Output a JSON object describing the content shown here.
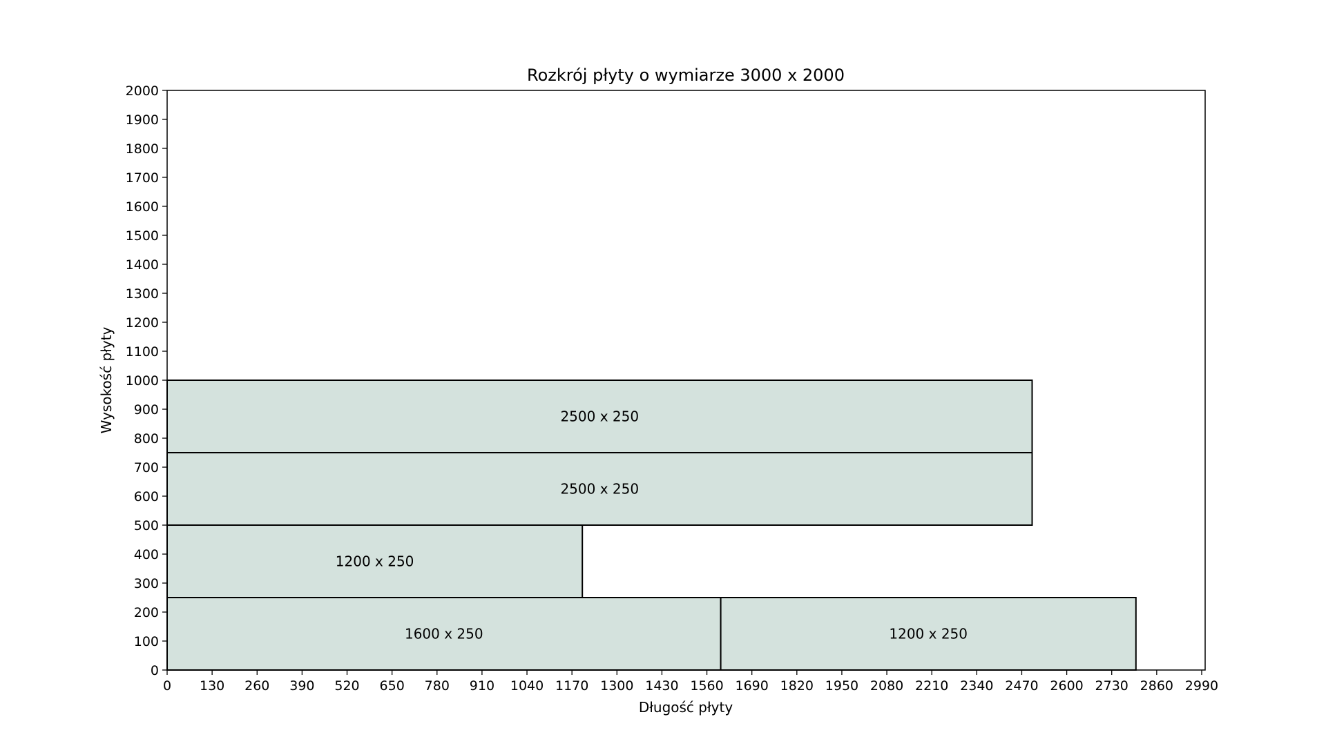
{
  "chart_data": {
    "type": "rectangle-layout",
    "title": "Rozkrój płyty o wymiarze 3000 x 2000",
    "xlabel": "Długość płyty",
    "ylabel": "Wysokość płyty",
    "xlim": [
      0,
      3000
    ],
    "ylim": [
      0,
      2000
    ],
    "x_ticks": [
      0,
      130,
      260,
      390,
      520,
      650,
      780,
      910,
      1040,
      1170,
      1300,
      1430,
      1560,
      1690,
      1820,
      1950,
      2080,
      2210,
      2340,
      2470,
      2600,
      2730,
      2860,
      2990
    ],
    "y_ticks": [
      0,
      100,
      200,
      300,
      400,
      500,
      600,
      700,
      800,
      900,
      1000,
      1100,
      1200,
      1300,
      1400,
      1500,
      1600,
      1700,
      1800,
      1900,
      2000
    ],
    "grid": false,
    "fill_color": "#d4e2dd",
    "edge_color": "#000000",
    "pieces": [
      {
        "label": "1600 x 250",
        "x": 0,
        "y": 0,
        "width": 1600,
        "height": 250
      },
      {
        "label": "1200 x 250",
        "x": 1600,
        "y": 0,
        "width": 1200,
        "height": 250
      },
      {
        "label": "1200 x 250",
        "x": 0,
        "y": 250,
        "width": 1200,
        "height": 250
      },
      {
        "label": "2500 x 250",
        "x": 0,
        "y": 500,
        "width": 2500,
        "height": 250
      },
      {
        "label": "2500 x 250",
        "x": 0,
        "y": 750,
        "width": 2500,
        "height": 250
      }
    ]
  }
}
